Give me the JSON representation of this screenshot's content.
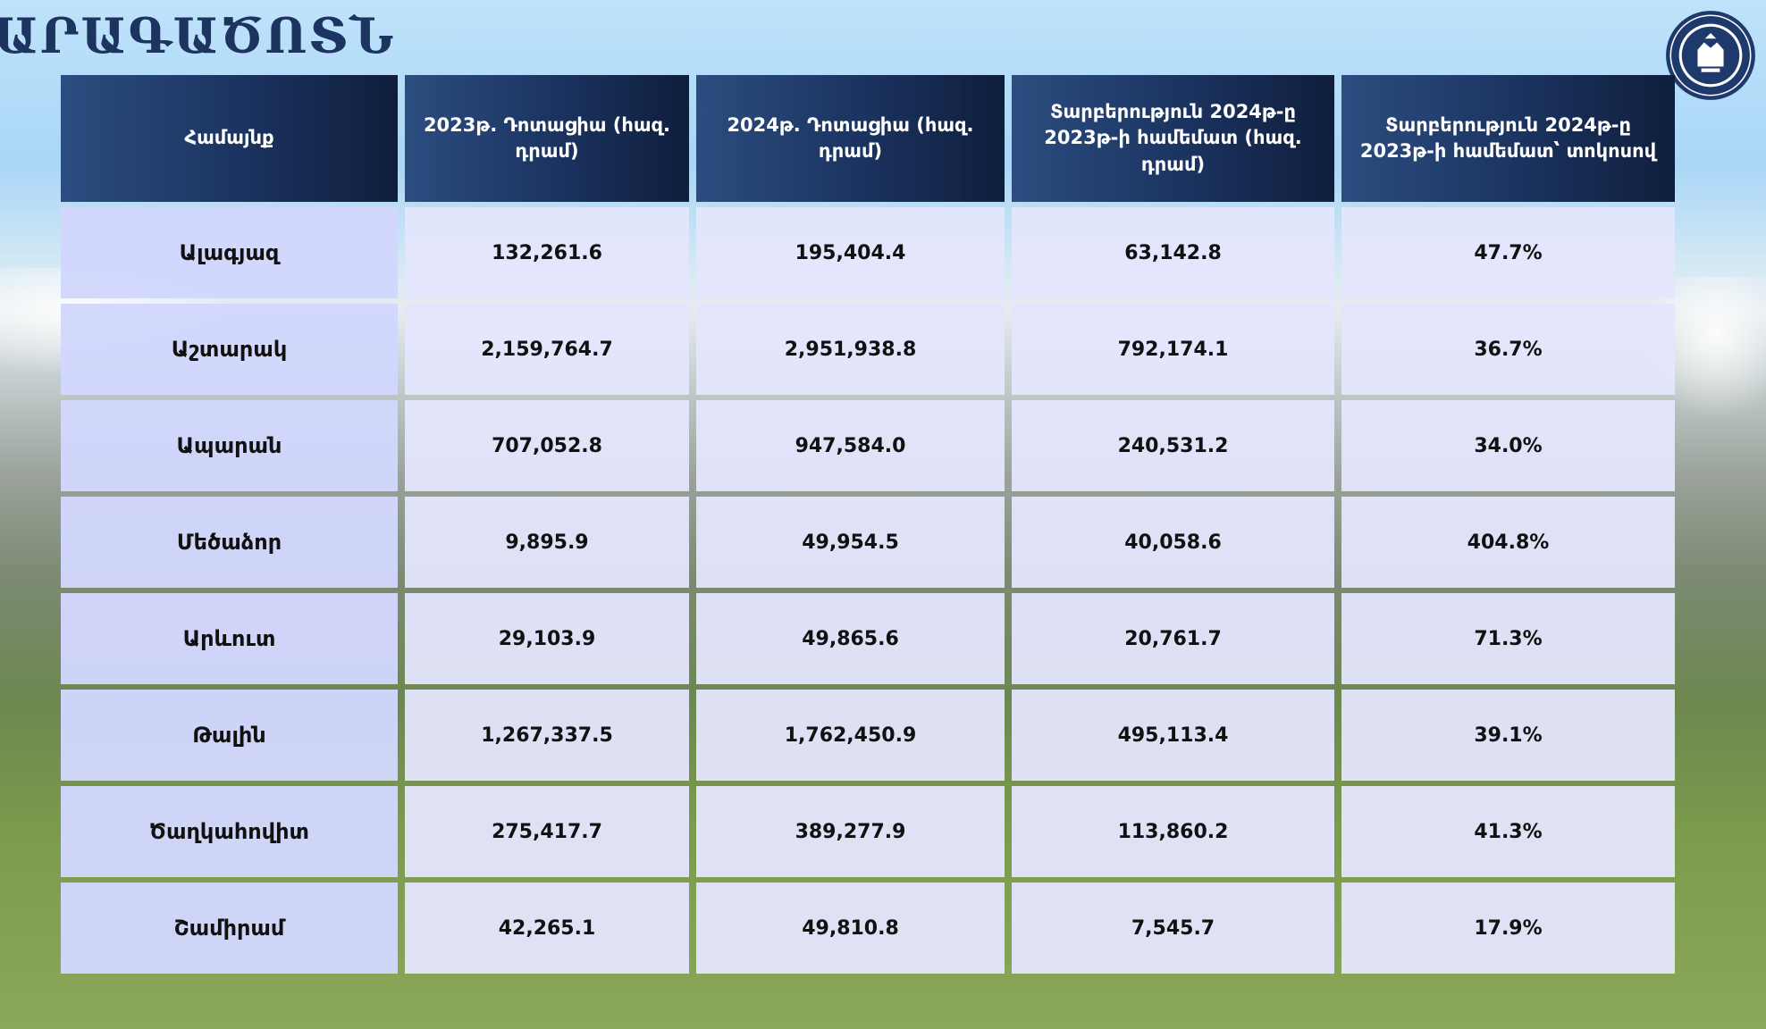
{
  "title": "ԱՐԱԳԱԾՈՏՆ",
  "logo": {
    "icon": "seal-logo-icon"
  },
  "table": {
    "headers": [
      "Համայնք",
      "2023թ. Դոտացիա (հազ. դրամ)",
      "2024թ. Դոտացիա (հազ. դրամ)",
      "Տարբերություն 2024թ-ը 2023թ-ի համեմատ (հազ. դրամ)",
      "Տարբերություն 2024թ-ը 2023թ-ի համեմատ՝ տոկոսով"
    ],
    "rows": [
      [
        "Ալագյազ",
        "132,261.6",
        "195,404.4",
        "63,142.8",
        "47.7%"
      ],
      [
        "Աշտարակ",
        "2,159,764.7",
        "2,951,938.8",
        "792,174.1",
        "36.7%"
      ],
      [
        "Ապարան",
        "707,052.8",
        "947,584.0",
        "240,531.2",
        "34.0%"
      ],
      [
        "Մեծաձոր",
        "9,895.9",
        "49,954.5",
        "40,058.6",
        "404.8%"
      ],
      [
        "Արևուտ",
        "29,103.9",
        "49,865.6",
        "20,761.7",
        "71.3%"
      ],
      [
        "Թալին",
        "1,267,337.5",
        "1,762,450.9",
        "495,113.4",
        "39.1%"
      ],
      [
        "Ծաղկահովիտ",
        "275,417.7",
        "389,277.9",
        "113,860.2",
        "41.3%"
      ],
      [
        "Շամիրամ",
        "42,265.1",
        "49,810.8",
        "7,545.7",
        "17.9%"
      ]
    ]
  }
}
